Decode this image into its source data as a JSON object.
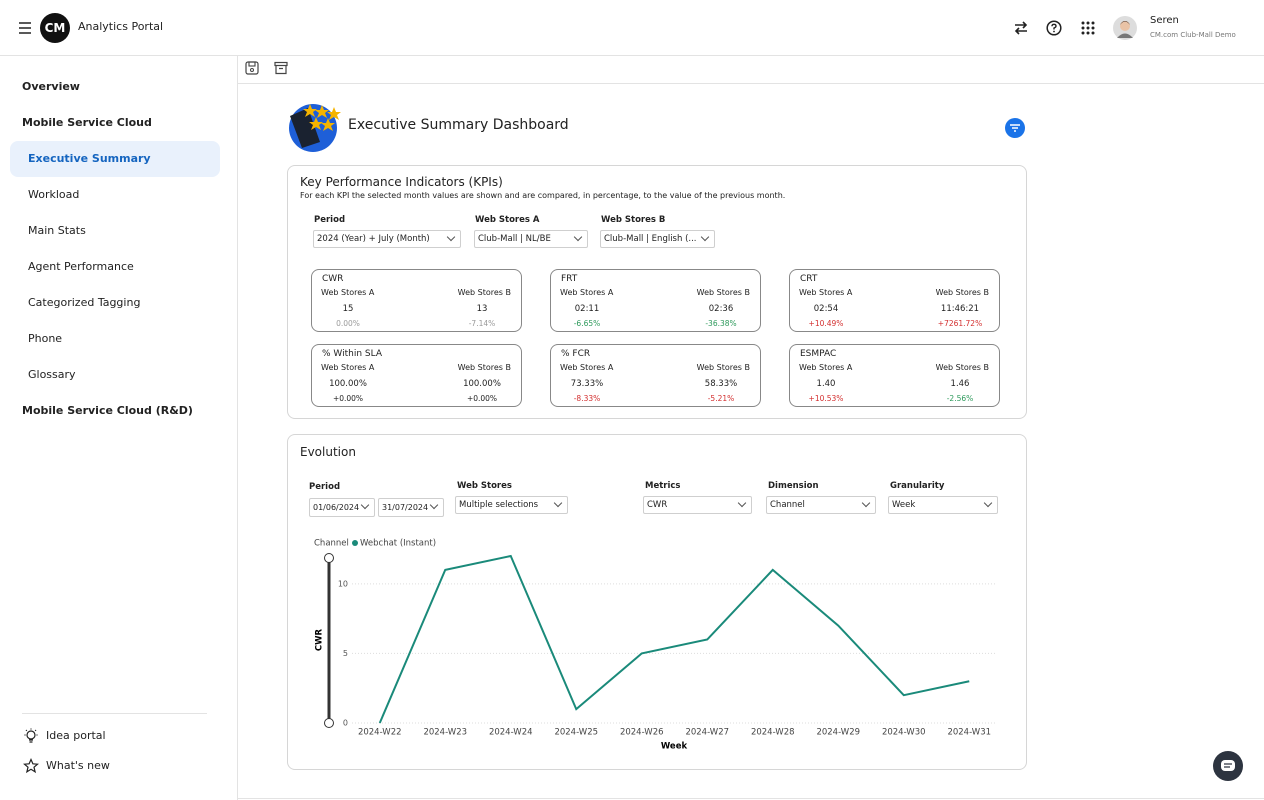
{
  "header": {
    "app_name": "Analytics Portal",
    "user_name": "Seren",
    "user_org": "CM.com Club-Mall Demo",
    "logo": "CM"
  },
  "sidebar": {
    "sections": [
      {
        "title": "Overview",
        "pages": []
      },
      {
        "title": "Mobile Service Cloud",
        "pages": [
          {
            "label": "Executive Summary",
            "active": true
          },
          {
            "label": "Workload"
          },
          {
            "label": "Main Stats"
          },
          {
            "label": "Agent Performance"
          },
          {
            "label": "Categorized Tagging"
          },
          {
            "label": "Phone"
          },
          {
            "label": "Glossary"
          }
        ]
      },
      {
        "title": "Mobile Service Cloud (R&D)",
        "pages": []
      }
    ],
    "footer": [
      "Idea portal",
      "What's new"
    ]
  },
  "dashboard": {
    "title": "Executive Summary Dashboard"
  },
  "kpi": {
    "title": "Key Performance Indicators (KPIs)",
    "description": "For each KPI the selected month values are shown and are compared, in percentage, to the value of the previous month.",
    "filters": [
      {
        "label": "Period",
        "value": "2024 (Year) + July (Month)"
      },
      {
        "label": "Web Stores A",
        "value": "Club-Mall | NL/BE"
      },
      {
        "label": "Web Stores B",
        "value": "Club-Mall | English (..."
      }
    ],
    "cards": [
      {
        "title": "CWR",
        "col_a": "Web Stores A",
        "col_b": "Web Stores B",
        "value_a": "15",
        "value_b": "13",
        "change_a": "0.00%",
        "change_b": "-7.14%",
        "change_a_color": "#9a9a9a",
        "change_b_color": "#9a9a9a"
      },
      {
        "title": "FRT",
        "col_a": "Web Stores A",
        "col_b": "Web Stores B",
        "value_a": "02:11",
        "value_b": "02:36",
        "change_a": "-6.65%",
        "change_b": "-36.38%",
        "change_a_color": "#2e9a5c",
        "change_b_color": "#2e9a5c"
      },
      {
        "title": "CRT",
        "col_a": "Web Stores A",
        "col_b": "Web Stores B",
        "value_a": "02:54",
        "value_b": "11:46:21",
        "change_a": "+10.49%",
        "change_b": "+7261.72%",
        "change_a_color": "#d32f2f",
        "change_b_color": "#d32f2f"
      },
      {
        "title": "% Within SLA",
        "col_a": "Web Stores A",
        "col_b": "Web Stores B",
        "value_a": "100.00%",
        "value_b": "100.00%",
        "change_a": "+0.00%",
        "change_b": "+0.00%",
        "change_a_color": "#222222",
        "change_b_color": "#222222"
      },
      {
        "title": "% FCR",
        "col_a": "Web Stores A",
        "col_b": "Web Stores B",
        "value_a": "73.33%",
        "value_b": "58.33%",
        "change_a": "-8.33%",
        "change_b": "-5.21%",
        "change_a_color": "#d32f2f",
        "change_b_color": "#d32f2f"
      },
      {
        "title": "ESMPAC",
        "col_a": "Web Stores A",
        "col_b": "Web Stores B",
        "value_a": "1.40",
        "value_b": "1.46",
        "change_a": "+10.53%",
        "change_b": "-2.56%",
        "change_a_color": "#d32f2f",
        "change_b_color": "#2e9a5c"
      }
    ]
  },
  "evolution": {
    "title": "Evolution",
    "period": {
      "label": "Period",
      "from": "01/06/2024",
      "to": "31/07/2024"
    },
    "filters": [
      {
        "label": "Web Stores",
        "value": "Multiple selections"
      },
      {
        "label": "Metrics",
        "value": "CWR"
      },
      {
        "label": "Dimension",
        "value": "Channel"
      },
      {
        "label": "Granularity",
        "value": "Week"
      }
    ]
  },
  "chart_data": {
    "type": "line",
    "legend_title": "Channel",
    "x_label": "Week",
    "y_label": "CWR",
    "categories": [
      "2024-W22",
      "2024-W23",
      "2024-W24",
      "2024-W25",
      "2024-W26",
      "2024-W27",
      "2024-W28",
      "2024-W29",
      "2024-W30",
      "2024-W31"
    ],
    "series": [
      {
        "name": "Webchat (Instant)",
        "color": "#1a8a7a",
        "values": [
          0,
          11,
          12,
          1,
          5,
          6,
          11,
          7,
          2,
          3
        ]
      }
    ],
    "ylim": [
      0,
      12
    ],
    "yticks": [
      0,
      5,
      10
    ],
    "grid": true
  }
}
